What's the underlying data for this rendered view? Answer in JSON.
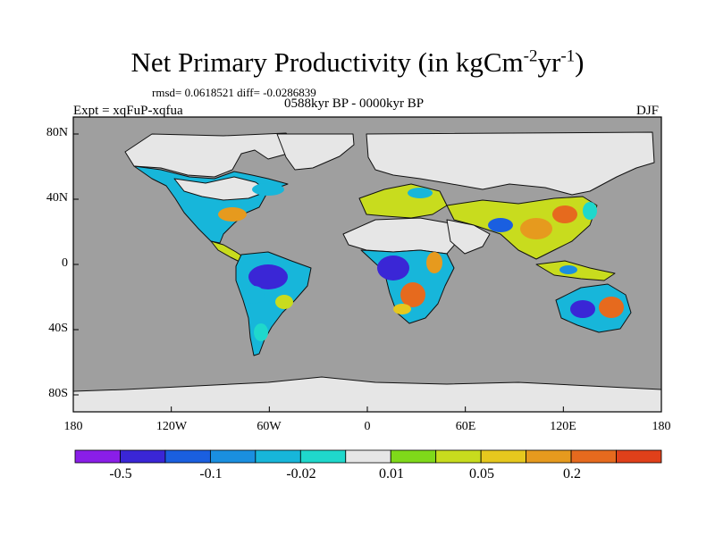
{
  "title": {
    "main": "Net Primary Productivity (in kgCm",
    "exp1": "-2",
    "mid": "yr",
    "exp2": "-1",
    "close": ")"
  },
  "stats": "rmsd= 0.0618521 diff= -0.0286839",
  "period": "0588kyr BP - 0000kyr BP",
  "expt": "Expt = xqFuP-xqfua",
  "season": "DJF",
  "axes": {
    "y_ticks": [
      "80N",
      "40N",
      "0",
      "40S",
      "80S"
    ],
    "x_ticks": [
      "180",
      "120W",
      "60W",
      "0",
      "60E",
      "120E",
      "180"
    ]
  },
  "colorbar": {
    "colors": [
      "#8a1ee8",
      "#3a26d6",
      "#1a5fe0",
      "#1a8fe0",
      "#17b6da",
      "#1fd8cc",
      "#e6e6e6",
      "#7fd91a",
      "#c8dc1e",
      "#e6c81e",
      "#e69a1e",
      "#e66a1e",
      "#e0401a"
    ],
    "labels": [
      "-0.5",
      "-0.1",
      "-0.02",
      "0.01",
      "0.05",
      "0.2"
    ]
  },
  "map_colors": {
    "ocean": "#9f9f9f",
    "ice": "#e6e6e6"
  }
}
